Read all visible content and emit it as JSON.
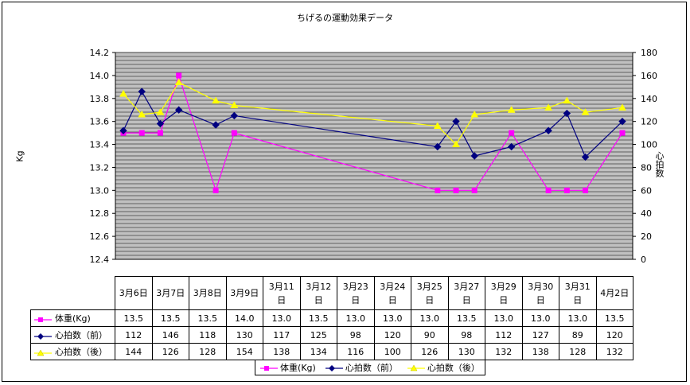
{
  "chart_data": {
    "type": "line",
    "title": "ちげるの運動効果データ",
    "ylabel_left": "Kg",
    "ylabel_right": "心拍数",
    "ylim_left": [
      12.4,
      14.2
    ],
    "ylim_right": [
      0,
      180
    ],
    "left_ticks": [
      "14.2",
      "14.0",
      "13.8",
      "13.6",
      "13.4",
      "13.2",
      "13.0",
      "12.8",
      "12.6",
      "12.4"
    ],
    "right_ticks": [
      "180",
      "160",
      "140",
      "120",
      "100",
      "80",
      "60",
      "40",
      "20",
      "0"
    ],
    "categories": [
      "3月6日",
      "3月7日",
      "3月8日",
      "3月9日",
      "3月11日",
      "3月12日",
      "3月23日",
      "3月24日",
      "3月25日",
      "3月27日",
      "3月29日",
      "3月30日",
      "3月31日",
      "4月2日"
    ],
    "series": [
      {
        "name": "体重(Kg)",
        "marker": "square",
        "color": "#ff00ff",
        "axis": "left",
        "values": [
          13.5,
          13.5,
          13.5,
          14.0,
          13.0,
          13.5,
          13.0,
          13.0,
          13.0,
          13.5,
          13.0,
          13.0,
          13.0,
          13.5
        ]
      },
      {
        "name": "心拍数（前）",
        "marker": "diamond",
        "color": "#000080",
        "axis": "right",
        "values": [
          112,
          146,
          118,
          130,
          117,
          125,
          98,
          120,
          90,
          98,
          112,
          127,
          89,
          120
        ]
      },
      {
        "name": "心拍数（後）",
        "marker": "triangle",
        "color": "#ffff00",
        "axis": "right",
        "values": [
          144,
          126,
          128,
          154,
          138,
          134,
          116,
          100,
          126,
          130,
          132,
          138,
          128,
          132
        ]
      }
    ],
    "table": {
      "headers": [
        [
          "3月6日"
        ],
        [
          "3月7日"
        ],
        [
          "3月8日"
        ],
        [
          "3月9日"
        ],
        [
          "3月11",
          "日"
        ],
        [
          "3月12",
          "日"
        ],
        [
          "3月23",
          "日"
        ],
        [
          "3月24",
          "日"
        ],
        [
          "3月25",
          "日"
        ],
        [
          "3月27",
          "日"
        ],
        [
          "3月29",
          "日"
        ],
        [
          "3月30",
          "日"
        ],
        [
          "3月31",
          "日"
        ],
        [
          "4月2日"
        ]
      ],
      "rows": [
        {
          "label": "体重(Kg)",
          "marker": "square",
          "color": "#ff00ff",
          "cells": [
            "13.5",
            "13.5",
            "13.5",
            "14.0",
            "13.0",
            "13.5",
            "13.0",
            "13.0",
            "13.0",
            "13.5",
            "13.0",
            "13.0",
            "13.0",
            "13.5"
          ]
        },
        {
          "label": "心拍数（前）",
          "marker": "diamond",
          "color": "#000080",
          "cells": [
            "112",
            "146",
            "118",
            "130",
            "117",
            "125",
            "98",
            "120",
            "90",
            "98",
            "112",
            "127",
            "89",
            "120"
          ]
        },
        {
          "label": "心拍数（後）",
          "marker": "triangle",
          "color": "#ffff00",
          "cells": [
            "144",
            "126",
            "128",
            "154",
            "138",
            "134",
            "116",
            "100",
            "126",
            "130",
            "132",
            "138",
            "128",
            "132"
          ]
        }
      ]
    },
    "legend": [
      {
        "label": "体重(Kg)",
        "marker": "square",
        "color": "#ff00ff"
      },
      {
        "label": "心拍数（前）",
        "marker": "diamond",
        "color": "#000080"
      },
      {
        "label": "心拍数（後）",
        "marker": "triangle",
        "color": "#ffff00"
      }
    ],
    "plot_background": "#c0c0c0",
    "grid": true
  }
}
